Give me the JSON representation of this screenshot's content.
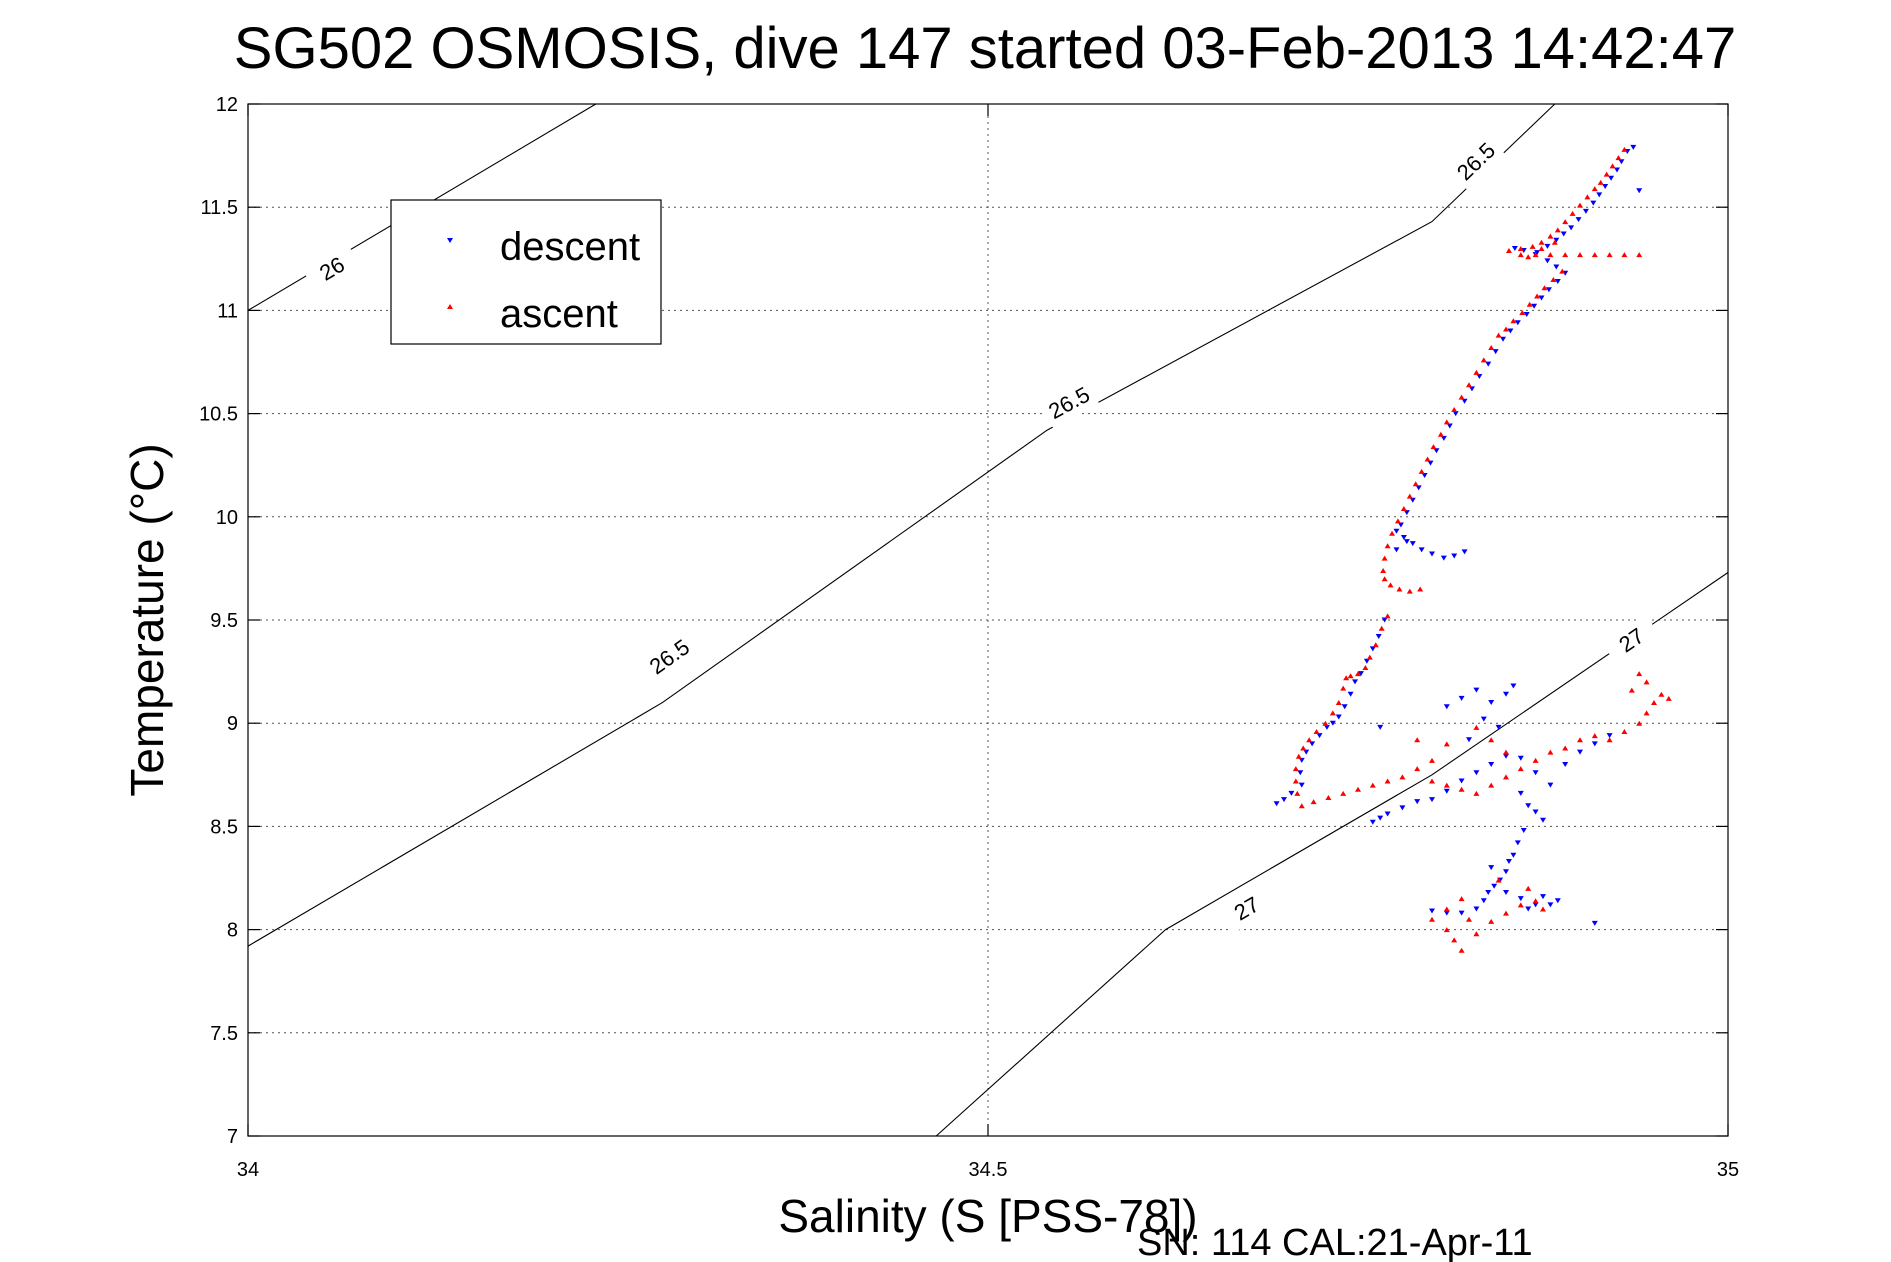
{
  "chart_data": {
    "type": "scatter",
    "title": "SG502 OSMOSIS, dive 147 started 03-Feb-2013 14:42:47",
    "xlabel": "Salinity (S [PSS-78])",
    "ylabel": "Temperature (°C)",
    "xlim": [
      34,
      35
    ],
    "ylim": [
      7,
      12
    ],
    "xticks": [
      34,
      34.5,
      35
    ],
    "xtick_labels": [
      "34",
      "34.5",
      "35"
    ],
    "yticks": [
      7,
      7.5,
      8,
      8.5,
      9,
      9.5,
      10,
      10.5,
      11,
      11.5,
      12
    ],
    "ytick_labels": [
      "7",
      "7.5",
      "8",
      "8.5",
      "9",
      "9.5",
      "10",
      "10.5",
      "11",
      "11.5",
      "12"
    ],
    "grid": true,
    "legend_position": "top-left",
    "footer": "SN: 114  CAL:21-Apr-11",
    "contours": [
      {
        "level": "26",
        "color": "#000000",
        "points": [
          [
            34.0,
            11.0
          ],
          [
            34.235,
            12.0
          ]
        ],
        "labels": [
          {
            "text": "26",
            "at": [
              34.057,
              11.2
            ]
          }
        ]
      },
      {
        "level": "26.5",
        "color": "#000000",
        "points": [
          [
            34.0,
            7.92
          ],
          [
            34.28,
            9.1
          ],
          [
            34.54,
            10.42
          ],
          [
            34.8,
            11.43
          ],
          [
            34.883,
            12.0
          ]
        ],
        "labels": [
          {
            "text": "26.5",
            "at": [
              34.285,
              9.32
            ]
          },
          {
            "text": "26.5",
            "at": [
              34.555,
              10.55
            ]
          },
          {
            "text": "26.5",
            "at": [
              34.83,
              11.72
            ]
          }
        ]
      },
      {
        "level": "27",
        "color": "#000000",
        "points": [
          [
            34.465,
            7.0
          ],
          [
            34.62,
            8.0
          ],
          [
            34.8,
            8.75
          ],
          [
            35.0,
            9.73
          ]
        ],
        "labels": [
          {
            "text": "27",
            "at": [
              34.675,
              8.1
            ]
          },
          {
            "text": "27",
            "at": [
              34.935,
              9.4
            ]
          }
        ]
      }
    ],
    "series": [
      {
        "name": "descent",
        "marker": "triangle-down",
        "color": "#0000ff",
        "points": [
          [
            34.932,
            11.77
          ],
          [
            34.928,
            11.72
          ],
          [
            34.925,
            11.68
          ],
          [
            34.921,
            11.64
          ],
          [
            34.917,
            11.6
          ],
          [
            34.913,
            11.56
          ],
          [
            34.909,
            11.52
          ],
          [
            34.904,
            11.48
          ],
          [
            34.899,
            11.44
          ],
          [
            34.894,
            11.4
          ],
          [
            34.889,
            11.37
          ],
          [
            34.884,
            11.34
          ],
          [
            34.878,
            11.31
          ],
          [
            34.871,
            11.28
          ],
          [
            34.862,
            11.29
          ],
          [
            34.856,
            11.3
          ],
          [
            34.87,
            11.27
          ],
          [
            34.878,
            11.24
          ],
          [
            34.884,
            11.21
          ],
          [
            34.89,
            11.18
          ],
          [
            34.885,
            11.14
          ],
          [
            34.879,
            11.1
          ],
          [
            34.874,
            11.06
          ],
          [
            34.869,
            11.02
          ],
          [
            34.864,
            10.98
          ],
          [
            34.858,
            10.94
          ],
          [
            34.853,
            10.9
          ],
          [
            34.848,
            10.86
          ],
          [
            34.843,
            10.8
          ],
          [
            34.838,
            10.74
          ],
          [
            34.832,
            10.68
          ],
          [
            34.827,
            10.62
          ],
          [
            34.822,
            10.56
          ],
          [
            34.816,
            10.5
          ],
          [
            34.812,
            10.44
          ],
          [
            34.808,
            10.38
          ],
          [
            34.803,
            10.32
          ],
          [
            34.799,
            10.26
          ],
          [
            34.795,
            10.2
          ],
          [
            34.791,
            10.14
          ],
          [
            34.787,
            10.08
          ],
          [
            34.783,
            10.02
          ],
          [
            34.779,
            9.96
          ],
          [
            34.776,
            9.93
          ],
          [
            34.781,
            9.9
          ],
          [
            34.787,
            9.87
          ],
          [
            34.793,
            9.84
          ],
          [
            34.8,
            9.82
          ],
          [
            34.808,
            9.8
          ],
          [
            34.815,
            9.81
          ],
          [
            34.822,
            9.83
          ],
          [
            34.783,
            9.88
          ],
          [
            34.776,
            9.84
          ],
          [
            34.768,
            9.5
          ],
          [
            34.764,
            9.42
          ],
          [
            34.76,
            9.36
          ],
          [
            34.756,
            9.3
          ],
          [
            34.752,
            9.24
          ],
          [
            34.748,
            9.2
          ],
          [
            34.745,
            9.14
          ],
          [
            34.741,
            9.08
          ],
          [
            34.737,
            9.03
          ],
          [
            34.733,
            9.0
          ],
          [
            34.729,
            8.98
          ],
          [
            34.724,
            8.94
          ],
          [
            34.719,
            8.9
          ],
          [
            34.715,
            8.86
          ],
          [
            34.712,
            8.82
          ],
          [
            34.711,
            8.76
          ],
          [
            34.712,
            8.7
          ],
          [
            34.705,
            8.66
          ],
          [
            34.7,
            8.63
          ],
          [
            34.695,
            8.61
          ],
          [
            34.765,
            8.98
          ],
          [
            34.76,
            8.52
          ],
          [
            34.765,
            8.54
          ],
          [
            34.77,
            8.56
          ],
          [
            34.78,
            8.59
          ],
          [
            34.79,
            8.62
          ],
          [
            34.8,
            8.63
          ],
          [
            34.81,
            8.67
          ],
          [
            34.82,
            8.72
          ],
          [
            34.83,
            8.76
          ],
          [
            34.84,
            8.8
          ],
          [
            34.85,
            8.84
          ],
          [
            34.86,
            8.83
          ],
          [
            34.87,
            8.76
          ],
          [
            34.88,
            8.7
          ],
          [
            34.89,
            8.8
          ],
          [
            34.9,
            8.86
          ],
          [
            34.91,
            8.9
          ],
          [
            34.92,
            8.94
          ],
          [
            34.81,
            9.08
          ],
          [
            34.82,
            9.12
          ],
          [
            34.83,
            9.16
          ],
          [
            34.84,
            9.1
          ],
          [
            34.85,
            9.14
          ],
          [
            34.855,
            9.18
          ],
          [
            34.835,
            9.02
          ],
          [
            34.845,
            8.98
          ],
          [
            34.825,
            8.92
          ],
          [
            34.86,
            8.66
          ],
          [
            34.865,
            8.6
          ],
          [
            34.87,
            8.57
          ],
          [
            34.875,
            8.53
          ],
          [
            34.862,
            8.48
          ],
          [
            34.858,
            8.42
          ],
          [
            34.855,
            8.36
          ],
          [
            34.852,
            8.33
          ],
          [
            34.85,
            8.28
          ],
          [
            34.846,
            8.24
          ],
          [
            34.842,
            8.21
          ],
          [
            34.838,
            8.18
          ],
          [
            34.835,
            8.14
          ],
          [
            34.84,
            8.3
          ],
          [
            34.85,
            8.18
          ],
          [
            34.86,
            8.15
          ],
          [
            34.87,
            8.12
          ],
          [
            34.88,
            8.12
          ],
          [
            34.885,
            8.14
          ],
          [
            34.875,
            8.16
          ],
          [
            34.865,
            8.1
          ],
          [
            34.83,
            8.1
          ],
          [
            34.82,
            8.08
          ],
          [
            34.81,
            8.08
          ],
          [
            34.8,
            8.09
          ],
          [
            34.91,
            8.03
          ],
          [
            34.94,
            11.58
          ],
          [
            34.936,
            11.79
          ]
        ]
      },
      {
        "name": "ascent",
        "marker": "triangle-up",
        "color": "#ff0000",
        "points": [
          [
            34.93,
            11.78
          ],
          [
            34.926,
            11.74
          ],
          [
            34.922,
            11.7
          ],
          [
            34.918,
            11.66
          ],
          [
            34.914,
            11.62
          ],
          [
            34.91,
            11.59
          ],
          [
            34.905,
            11.55
          ],
          [
            34.9,
            11.51
          ],
          [
            34.895,
            11.47
          ],
          [
            34.89,
            11.43
          ],
          [
            34.885,
            11.39
          ],
          [
            34.88,
            11.36
          ],
          [
            34.874,
            11.33
          ],
          [
            34.868,
            11.31
          ],
          [
            34.86,
            11.3
          ],
          [
            34.852,
            11.29
          ],
          [
            34.86,
            11.27
          ],
          [
            34.87,
            11.27
          ],
          [
            34.88,
            11.27
          ],
          [
            34.89,
            11.27
          ],
          [
            34.9,
            11.27
          ],
          [
            34.91,
            11.27
          ],
          [
            34.92,
            11.27
          ],
          [
            34.93,
            11.27
          ],
          [
            34.94,
            11.27
          ],
          [
            34.865,
            11.26
          ],
          [
            34.874,
            11.3
          ],
          [
            34.883,
            11.33
          ],
          [
            34.888,
            11.19
          ],
          [
            34.882,
            11.15
          ],
          [
            34.876,
            11.11
          ],
          [
            34.871,
            11.07
          ],
          [
            34.866,
            11.03
          ],
          [
            34.861,
            10.99
          ],
          [
            34.855,
            10.95
          ],
          [
            34.85,
            10.91
          ],
          [
            34.845,
            10.88
          ],
          [
            34.84,
            10.82
          ],
          [
            34.835,
            10.76
          ],
          [
            34.83,
            10.7
          ],
          [
            34.825,
            10.64
          ],
          [
            34.82,
            10.58
          ],
          [
            34.815,
            10.52
          ],
          [
            34.81,
            10.46
          ],
          [
            34.806,
            10.4
          ],
          [
            34.801,
            10.34
          ],
          [
            34.797,
            10.28
          ],
          [
            34.793,
            10.22
          ],
          [
            34.789,
            10.16
          ],
          [
            34.785,
            10.1
          ],
          [
            34.781,
            10.04
          ],
          [
            34.777,
            9.98
          ],
          [
            34.773,
            9.92
          ],
          [
            34.77,
            9.86
          ],
          [
            34.768,
            9.8
          ],
          [
            34.767,
            9.74
          ],
          [
            34.768,
            9.7
          ],
          [
            34.772,
            9.67
          ],
          [
            34.778,
            9.65
          ],
          [
            34.785,
            9.64
          ],
          [
            34.792,
            9.65
          ],
          [
            34.77,
            9.52
          ],
          [
            34.766,
            9.46
          ],
          [
            34.762,
            9.38
          ],
          [
            34.758,
            9.32
          ],
          [
            34.755,
            9.27
          ],
          [
            34.75,
            9.24
          ],
          [
            34.745,
            9.23
          ],
          [
            34.742,
            9.22
          ],
          [
            34.74,
            9.17
          ],
          [
            34.737,
            9.1
          ],
          [
            34.733,
            9.05
          ],
          [
            34.728,
            9.0
          ],
          [
            34.722,
            8.96
          ],
          [
            34.717,
            8.92
          ],
          [
            34.713,
            8.88
          ],
          [
            34.71,
            8.84
          ],
          [
            34.708,
            8.78
          ],
          [
            34.708,
            8.72
          ],
          [
            34.709,
            8.66
          ],
          [
            34.712,
            8.6
          ],
          [
            34.72,
            8.62
          ],
          [
            34.73,
            8.64
          ],
          [
            34.74,
            8.66
          ],
          [
            34.75,
            8.68
          ],
          [
            34.76,
            8.7
          ],
          [
            34.77,
            8.72
          ],
          [
            34.78,
            8.74
          ],
          [
            34.79,
            8.78
          ],
          [
            34.8,
            8.72
          ],
          [
            34.81,
            8.7
          ],
          [
            34.82,
            8.68
          ],
          [
            34.83,
            8.66
          ],
          [
            34.84,
            8.7
          ],
          [
            34.85,
            8.74
          ],
          [
            34.86,
            8.78
          ],
          [
            34.87,
            8.82
          ],
          [
            34.88,
            8.86
          ],
          [
            34.89,
            8.88
          ],
          [
            34.9,
            8.92
          ],
          [
            34.91,
            8.94
          ],
          [
            34.92,
            8.92
          ],
          [
            34.93,
            8.96
          ],
          [
            34.94,
            9.0
          ],
          [
            34.945,
            9.05
          ],
          [
            34.95,
            9.1
          ],
          [
            34.955,
            9.14
          ],
          [
            34.96,
            9.12
          ],
          [
            34.945,
            9.2
          ],
          [
            34.94,
            9.24
          ],
          [
            34.935,
            9.16
          ],
          [
            34.79,
            8.92
          ],
          [
            34.8,
            8.82
          ],
          [
            34.81,
            8.9
          ],
          [
            34.83,
            8.98
          ],
          [
            34.84,
            8.92
          ],
          [
            34.85,
            8.86
          ],
          [
            34.8,
            8.05
          ],
          [
            34.81,
            8.0
          ],
          [
            34.815,
            7.95
          ],
          [
            34.82,
            7.9
          ],
          [
            34.83,
            7.98
          ],
          [
            34.84,
            8.04
          ],
          [
            34.85,
            8.08
          ],
          [
            34.86,
            8.12
          ],
          [
            34.87,
            8.14
          ],
          [
            34.875,
            8.1
          ],
          [
            34.865,
            8.2
          ],
          [
            34.845,
            8.24
          ],
          [
            34.82,
            8.15
          ],
          [
            34.81,
            8.1
          ],
          [
            34.825,
            8.05
          ]
        ]
      }
    ]
  }
}
